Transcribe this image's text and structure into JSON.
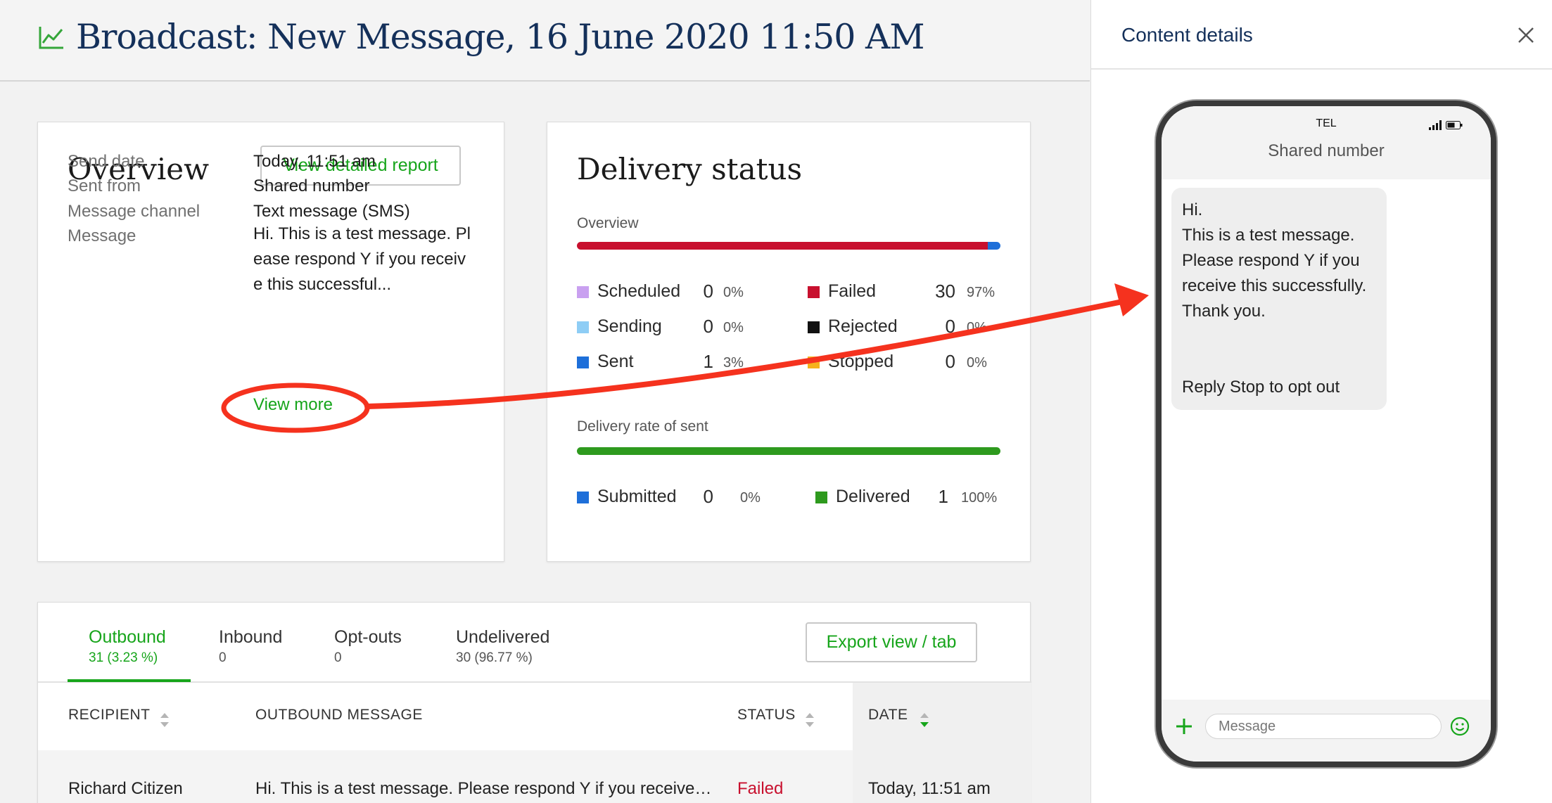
{
  "header": {
    "title": "Broadcast: New Message, 16 June 2020 11:50 AM",
    "icon": "line-chart-icon",
    "accent": "#17a51b"
  },
  "overview": {
    "title": "Overview",
    "report_button": "View detailed report",
    "fields": [
      {
        "label": "Send date",
        "value": "Today, 11:51 am"
      },
      {
        "label": "Sent from",
        "value": "Shared number"
      },
      {
        "label": "Message channel",
        "value": "Text message (SMS)"
      },
      {
        "label": "Message",
        "value": "Hi. This is a test message. Please respond Y if you receive this successful..."
      }
    ],
    "view_more": "View more"
  },
  "delivery": {
    "title": "Delivery status",
    "overview_label": "Overview",
    "overview_bar": {
      "failed_fraction": 0.97,
      "sent_fraction": 0.03,
      "failed_color": "#c8102e",
      "sent_color": "#1e6fd9"
    },
    "stats": [
      {
        "label": "Scheduled",
        "count": "0",
        "pct": "0%",
        "color": "#c9a0f0"
      },
      {
        "label": "Sending",
        "count": "0",
        "pct": "0%",
        "color": "#8ecdf5"
      },
      {
        "label": "Sent",
        "count": "1",
        "pct": "3%",
        "color": "#1e6fd9"
      },
      {
        "label": "Failed",
        "count": "30",
        "pct": "97%",
        "color": "#c8102e"
      },
      {
        "label": "Rejected",
        "count": "0",
        "pct": "0%",
        "color": "#111111"
      },
      {
        "label": "Stopped",
        "count": "0",
        "pct": "0%",
        "color": "#f6b21b"
      }
    ],
    "rate_label": "Delivery rate of sent",
    "rate_bar": {
      "delivered_fraction": 1.0,
      "color": "#2e9a1e"
    },
    "rate_stats": [
      {
        "label": "Submitted",
        "count": "0",
        "pct": "0%",
        "color": "#1e6fd9"
      },
      {
        "label": "Delivered",
        "count": "1",
        "pct": "100%",
        "color": "#2e9a1e"
      }
    ]
  },
  "tabs": [
    {
      "label": "Outbound",
      "count": "31 (3.23 %)",
      "active": true
    },
    {
      "label": "Inbound",
      "count": "0"
    },
    {
      "label": "Opt-outs",
      "count": "0"
    },
    {
      "label": "Undelivered",
      "count": "30 (96.77 %)"
    }
  ],
  "export_button": "Export view / tab",
  "table": {
    "headers": [
      "RECIPIENT",
      "OUTBOUND MESSAGE",
      "STATUS",
      "DATE"
    ],
    "rows": [
      {
        "recipient": "Richard Citizen",
        "message": "Hi. This is a test message. Please respond Y if you receive…",
        "status": "Failed",
        "date": "Today, 11:51 am"
      }
    ],
    "status_failed_color": "#c8102e"
  },
  "side_panel": {
    "title": "Content details",
    "phone": {
      "carrier": "TEL",
      "sender": "Shared number",
      "message_lines": [
        "Hi.",
        "This is a test message.",
        "Please respond Y if you",
        "receive this successfully.",
        "Thank you.",
        "",
        "",
        "Reply Stop to opt out"
      ],
      "input_placeholder": "Message"
    }
  },
  "annotation_color": "#f5321e"
}
